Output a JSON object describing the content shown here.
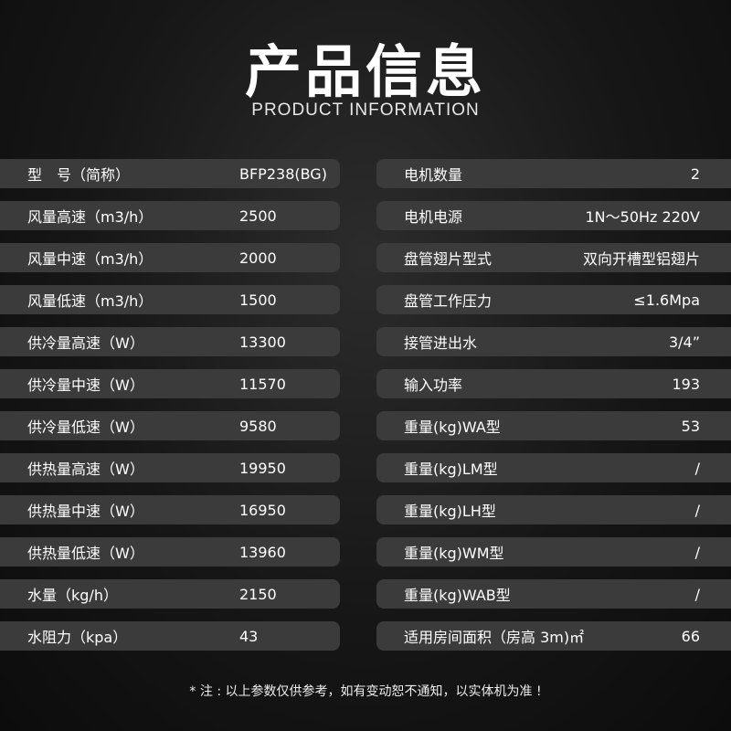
{
  "header": {
    "title": "产品信息",
    "subtitle": "PRODUCT INFORMATION"
  },
  "left": [
    {
      "label": "型　号（简称）",
      "value": "BFP238(BG)"
    },
    {
      "label": "风量高速（m3/h）",
      "value": "2500"
    },
    {
      "label": "风量中速（m3/h）",
      "value": "2000"
    },
    {
      "label": "风量低速（m3/h）",
      "value": "1500"
    },
    {
      "label": "供冷量高速（W）",
      "value": "13300"
    },
    {
      "label": "供冷量中速（W）",
      "value": "11570"
    },
    {
      "label": "供冷量低速（W）",
      "value": "9580"
    },
    {
      "label": "供热量高速（W）",
      "value": "19950"
    },
    {
      "label": "供热量中速（W）",
      "value": "16950"
    },
    {
      "label": "供热量低速（W）",
      "value": "13960"
    },
    {
      "label": "水量（kg/h）",
      "value": "2150"
    },
    {
      "label": "水阻力（kpa）",
      "value": "43"
    }
  ],
  "right": [
    {
      "label": "电机数量",
      "value": "2"
    },
    {
      "label": "电机电源",
      "value": "1N～50Hz  220V"
    },
    {
      "label": "盘管翅片型式",
      "value": "双向开槽型铝翅片"
    },
    {
      "label": "盘管工作压力",
      "value": "≤1.6Mpa"
    },
    {
      "label": "接管进出水",
      "value": "3/4”"
    },
    {
      "label": "输入功率",
      "value": "193"
    },
    {
      "label": "重量(kg)WA型",
      "value": "53"
    },
    {
      "label": "重量(kg)LM型",
      "value": "/"
    },
    {
      "label": "重量(kg)LH型",
      "value": "/"
    },
    {
      "label": "重量(kg)WM型",
      "value": "/"
    },
    {
      "label": "重量(kg)WAB型",
      "value": "/"
    },
    {
      "label": "适用房间面积（房高 3m)㎡",
      "value": "66"
    }
  ],
  "footer": {
    "note": "* 注 : 以上参数仅供参考，如有变动恕不通知，以实体机为准 !"
  }
}
